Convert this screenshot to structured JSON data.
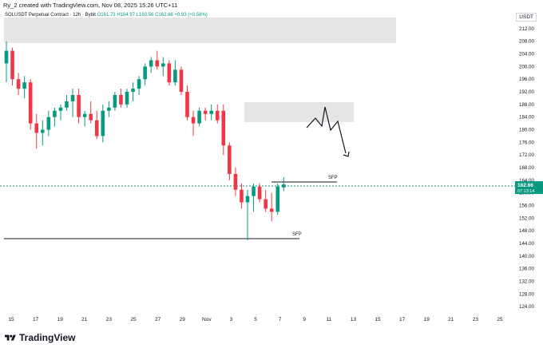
{
  "header": {
    "credit": "Ry_2 created with TradingView.com, Nov 08, 2025 15:26 UTC+11"
  },
  "legend": {
    "symbol": "SOLUSDT Perpetual Contract · 12h · Bybit",
    "open": "O161.73",
    "high": "H164.97",
    "low": "L160.56",
    "close": "C162.66",
    "change": "+0.93 (+0.58%)"
  },
  "price_scale": {
    "currency": "USDT",
    "ticks": [
      "212.00",
      "208.00",
      "204.00",
      "200.00",
      "196.00",
      "192.00",
      "188.00",
      "184.00",
      "180.00",
      "176.00",
      "172.00",
      "168.00",
      "164.00",
      "160.00",
      "156.00",
      "152.00",
      "148.00",
      "144.00",
      "140.00",
      "136.00",
      "132.00",
      "128.00",
      "124.00"
    ],
    "last_price": "162.66",
    "countdown": "07:13:14"
  },
  "time_axis": {
    "ticks": [
      "15",
      "17",
      "19",
      "21",
      "23",
      "25",
      "27",
      "29",
      "Nov",
      "3",
      "5",
      "7",
      "9",
      "11",
      "13",
      "15",
      "17",
      "19",
      "21",
      "23",
      "25"
    ]
  },
  "annotations": {
    "sfp_top": "SFP",
    "sfp_bottom": "SFP"
  },
  "colors": {
    "up": "#089981",
    "down": "#f23645",
    "zone": "#e0e0e0",
    "last_price_line": "#089981"
  },
  "chart_data": {
    "type": "candlestick",
    "symbol": "SOLUSDT",
    "timeframe": "12h",
    "ylim": [
      122,
      214
    ],
    "candles": [
      {
        "o": 201,
        "h": 208,
        "l": 195,
        "c": 205
      },
      {
        "o": 205,
        "h": 206,
        "l": 194,
        "c": 196
      },
      {
        "o": 196,
        "h": 198,
        "l": 191,
        "c": 193
      },
      {
        "o": 193,
        "h": 197,
        "l": 190,
        "c": 195
      },
      {
        "o": 195,
        "h": 196,
        "l": 180,
        "c": 182
      },
      {
        "o": 182,
        "h": 185,
        "l": 174,
        "c": 179
      },
      {
        "o": 179,
        "h": 183,
        "l": 175,
        "c": 180
      },
      {
        "o": 180,
        "h": 186,
        "l": 178,
        "c": 184
      },
      {
        "o": 184,
        "h": 187,
        "l": 181,
        "c": 186
      },
      {
        "o": 186,
        "h": 188,
        "l": 183,
        "c": 187
      },
      {
        "o": 187,
        "h": 191,
        "l": 186,
        "c": 189
      },
      {
        "o": 189,
        "h": 193,
        "l": 184,
        "c": 191
      },
      {
        "o": 191,
        "h": 193,
        "l": 182,
        "c": 184
      },
      {
        "o": 184,
        "h": 186,
        "l": 181,
        "c": 185
      },
      {
        "o": 185,
        "h": 189,
        "l": 182,
        "c": 183
      },
      {
        "o": 183,
        "h": 186,
        "l": 177,
        "c": 178
      },
      {
        "o": 178,
        "h": 188,
        "l": 176,
        "c": 186
      },
      {
        "o": 186,
        "h": 189,
        "l": 184,
        "c": 187
      },
      {
        "o": 187,
        "h": 192,
        "l": 186,
        "c": 191
      },
      {
        "o": 191,
        "h": 193,
        "l": 187,
        "c": 188
      },
      {
        "o": 188,
        "h": 193,
        "l": 187,
        "c": 192
      },
      {
        "o": 192,
        "h": 195,
        "l": 189,
        "c": 193
      },
      {
        "o": 193,
        "h": 197,
        "l": 191,
        "c": 196
      },
      {
        "o": 196,
        "h": 201,
        "l": 194,
        "c": 200
      },
      {
        "o": 200,
        "h": 203,
        "l": 198,
        "c": 202
      },
      {
        "o": 202,
        "h": 205,
        "l": 199,
        "c": 200
      },
      {
        "o": 200,
        "h": 203,
        "l": 197,
        "c": 201
      },
      {
        "o": 201,
        "h": 202,
        "l": 194,
        "c": 195
      },
      {
        "o": 195,
        "h": 202,
        "l": 194,
        "c": 199
      },
      {
        "o": 199,
        "h": 200,
        "l": 191,
        "c": 192
      },
      {
        "o": 192,
        "h": 194,
        "l": 183,
        "c": 184
      },
      {
        "o": 184,
        "h": 186,
        "l": 178,
        "c": 182
      },
      {
        "o": 182,
        "h": 187,
        "l": 181,
        "c": 186
      },
      {
        "o": 186,
        "h": 187,
        "l": 183,
        "c": 185
      },
      {
        "o": 185,
        "h": 188,
        "l": 183,
        "c": 186
      },
      {
        "o": 186,
        "h": 188,
        "l": 182,
        "c": 183
      },
      {
        "o": 186,
        "h": 188,
        "l": 172,
        "c": 175
      },
      {
        "o": 175,
        "h": 176,
        "l": 164,
        "c": 166
      },
      {
        "o": 166,
        "h": 168,
        "l": 159,
        "c": 161
      },
      {
        "o": 161,
        "h": 163,
        "l": 155,
        "c": 157
      },
      {
        "o": 157,
        "h": 161,
        "l": 145,
        "c": 159
      },
      {
        "o": 159,
        "h": 163,
        "l": 154,
        "c": 162
      },
      {
        "o": 162,
        "h": 163,
        "l": 157,
        "c": 158
      },
      {
        "o": 158,
        "h": 161,
        "l": 154,
        "c": 155
      },
      {
        "o": 155,
        "h": 160,
        "l": 151,
        "c": 154
      },
      {
        "o": 154,
        "h": 163,
        "l": 153,
        "c": 162
      },
      {
        "o": 161.73,
        "h": 164.97,
        "l": 160.56,
        "c": 162.66
      }
    ]
  }
}
